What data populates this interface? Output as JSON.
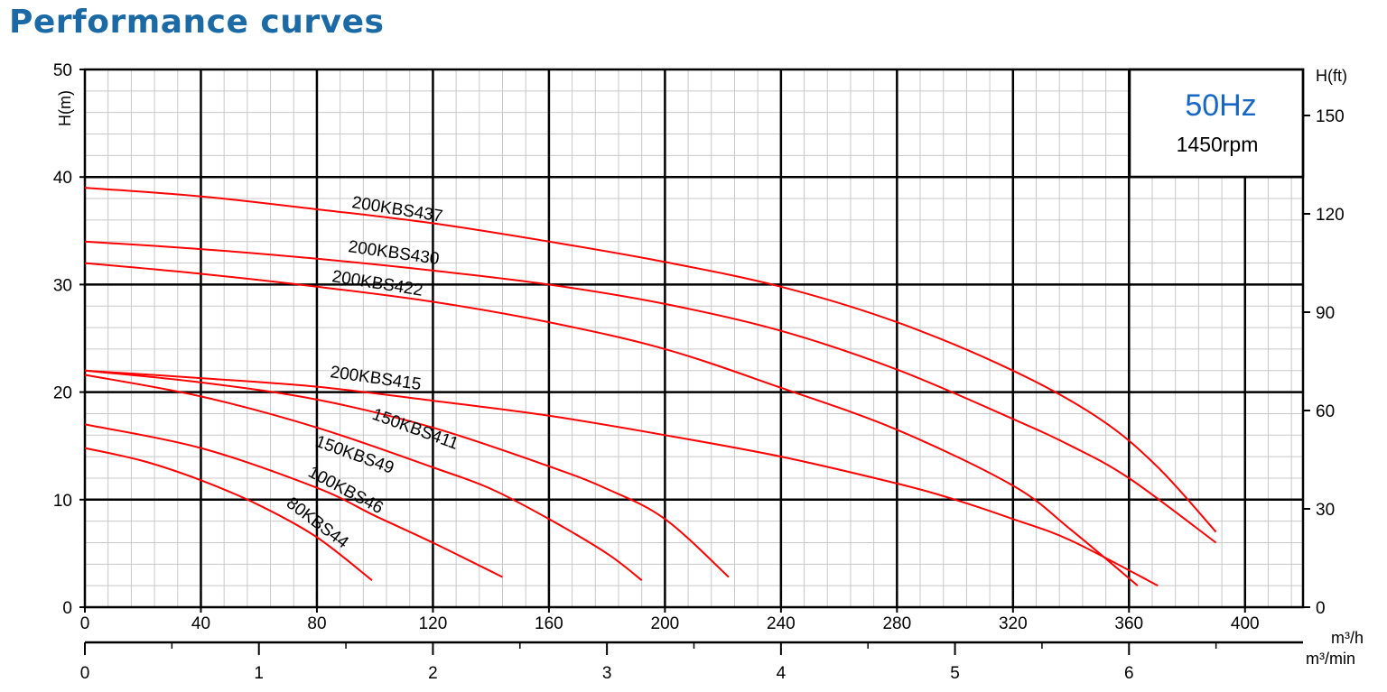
{
  "page_title": "Performance curves",
  "chart_data": {
    "type": "line",
    "title": "Performance curves",
    "frequency_label": "50Hz",
    "speed_label": "1450rpm",
    "ylabel_left": "H(m)",
    "ylabel_right": "H(ft)",
    "xunit_flow_h": "m³/h",
    "xunit_flow_min": "m³/min",
    "xlim_m3h": [
      0,
      420
    ],
    "ylim_m": [
      0,
      50
    ],
    "x_ticks_m3h": [
      "0",
      "40",
      "80",
      "120",
      "160",
      "200",
      "240",
      "280",
      "320",
      "360",
      "400"
    ],
    "y_ticks_m": [
      "0",
      "10",
      "20",
      "30",
      "40",
      "50"
    ],
    "y_ticks_ft": [
      "0",
      "30",
      "60",
      "90",
      "120",
      "150"
    ],
    "x_ticks_m3min": [
      "0",
      "1",
      "2",
      "3",
      "4",
      "5",
      "6"
    ],
    "grid": true,
    "series": [
      {
        "name": "200KBS437",
        "x": [
          0,
          40,
          80,
          120,
          160,
          200,
          240,
          280,
          320,
          350,
          370,
          390
        ],
        "y": [
          39,
          38.2,
          37,
          35.7,
          34,
          32.1,
          29.8,
          26.5,
          22,
          17.5,
          13,
          7
        ]
      },
      {
        "name": "200KBS430",
        "x": [
          0,
          40,
          80,
          120,
          160,
          200,
          240,
          280,
          320,
          340,
          360,
          390
        ],
        "y": [
          34,
          33.3,
          32.4,
          31.3,
          30,
          28.2,
          25.7,
          22.1,
          17.5,
          15,
          12,
          6
        ]
      },
      {
        "name": "200KBS422",
        "x": [
          0,
          40,
          80,
          120,
          160,
          200,
          240,
          280,
          320,
          340,
          363
        ],
        "y": [
          32,
          31,
          29.8,
          28.4,
          26.5,
          24,
          20.4,
          16.5,
          11.3,
          7.2,
          2
        ]
      },
      {
        "name": "200KBS415",
        "x": [
          0,
          40,
          80,
          120,
          160,
          200,
          240,
          280,
          300,
          320,
          340,
          370
        ],
        "y": [
          22,
          21.3,
          20.5,
          19.2,
          17.8,
          16,
          14,
          11.5,
          10,
          8.2,
          6.2,
          2
        ]
      },
      {
        "name": "150KBS411",
        "x": [
          0,
          40,
          80,
          120,
          160,
          180,
          200,
          222
        ],
        "y": [
          22,
          20.9,
          19.3,
          16.7,
          13.1,
          11,
          8.2,
          2.8
        ]
      },
      {
        "name": "150KBS49",
        "x": [
          0,
          40,
          80,
          120,
          140,
          160,
          180,
          192
        ],
        "y": [
          21.6,
          19.6,
          16.7,
          13,
          11,
          8.2,
          5,
          2.5
        ]
      },
      {
        "name": "100KBS46",
        "x": [
          0,
          40,
          80,
          100,
          120,
          144
        ],
        "y": [
          17,
          14.8,
          11.1,
          8.5,
          6,
          2.8
        ]
      },
      {
        "name": "80KBS44",
        "x": [
          0,
          20,
          40,
          60,
          80,
          99
        ],
        "y": [
          14.8,
          13.6,
          11.8,
          9.5,
          6.5,
          2.5
        ]
      }
    ]
  }
}
